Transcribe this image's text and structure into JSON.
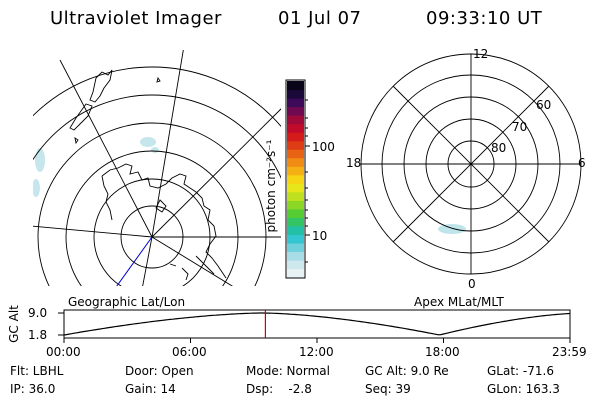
{
  "header": {
    "instrument": "Ultraviolet Imager",
    "date": "01 Jul 07",
    "time": "09:33:10 UT"
  },
  "left_panel": {
    "label": "Geographic Lat/Lon"
  },
  "right_panel": {
    "label": "Apex MLat/MLT",
    "mlt_labels": {
      "top": "12",
      "left": "18",
      "right": "6",
      "bottom": "0"
    },
    "mlat_labels": [
      "60",
      "70",
      "80"
    ]
  },
  "colorbar": {
    "unit_label": "photon cm⁻²s⁻¹",
    "tick_labels": [
      "100",
      "10"
    ],
    "colors": [
      "#e8f2f5",
      "#cfe8ee",
      "#a8dce6",
      "#70d0dc",
      "#33c6d0",
      "#22c0a6",
      "#33c466",
      "#55cc33",
      "#8cd626",
      "#bfe01e",
      "#e6e61a",
      "#f5d514",
      "#f5b014",
      "#f08c14",
      "#e86414",
      "#de3c14",
      "#d41a1a",
      "#c20a2a",
      "#a00a3a",
      "#700a50",
      "#3c0a58",
      "#1a0838",
      "#0a0418"
    ]
  },
  "altitude_plot": {
    "ylabel": "GC Alt",
    "yticks": [
      "9.0",
      "1.8"
    ],
    "xticks": [
      "00:00",
      "06:00",
      "12:00",
      "18:00",
      "23:59"
    ],
    "current_time_hours": 9.553,
    "marker_color": "#cc0000"
  },
  "status": {
    "row1": {
      "filter": "Flt: LBHL",
      "door": "Door: Open",
      "mode": "Mode: Normal",
      "gc_alt": "GC Alt: 9.0 Re",
      "glat": "GLat: -71.6"
    },
    "row2": {
      "ip": "IP: 36.0",
      "gain": "Gain: 14",
      "dsp": "Dsp:    -2.8",
      "seq": "Seq: 39",
      "glon": "GLon: 163.3"
    }
  }
}
